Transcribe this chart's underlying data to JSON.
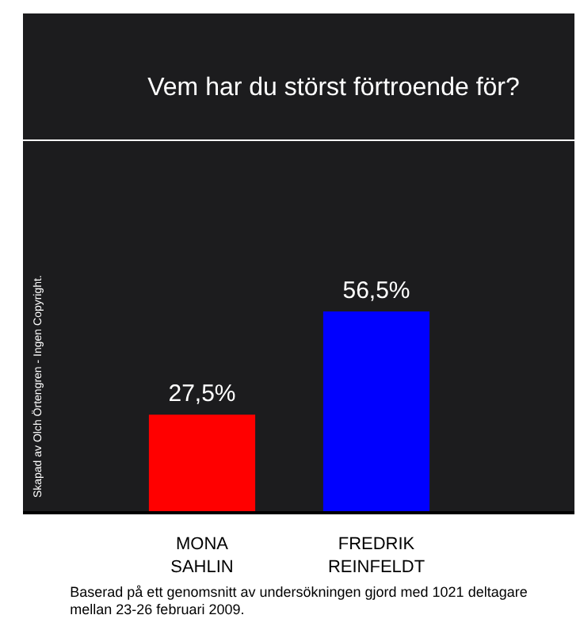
{
  "chart_data": {
    "type": "bar",
    "title": "Vem har du störst förtroende för?",
    "categories": [
      "MONA\nSAHLIN",
      "FREDRIK\nREINFELDT"
    ],
    "values": [
      27.5,
      56.5
    ],
    "colors": [
      "#ff0000",
      "#0000ff"
    ],
    "value_labels": [
      "27,5%",
      "56,5%"
    ],
    "annotations": [
      "Skapad av Olch Örtengren - Ingen Copyright.",
      "Baserad på ett genomsnitt av undersökningen gjord med 1021 deltagare mellan 23-26 februari 2009."
    ]
  }
}
